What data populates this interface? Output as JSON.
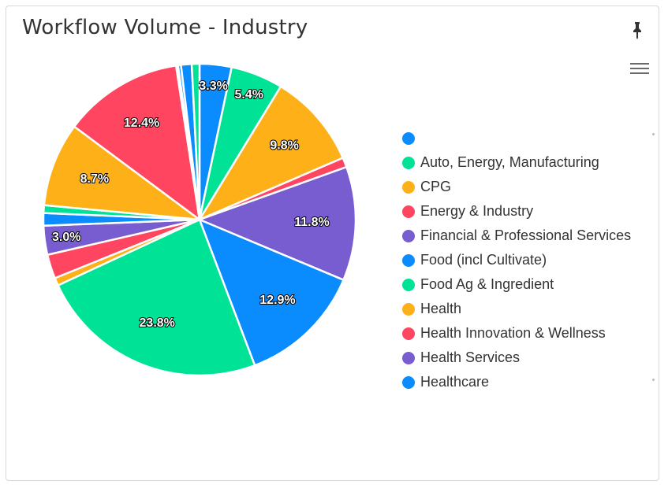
{
  "header": {
    "title": "Workflow Volume - Industry"
  },
  "colors": {
    "blue": "#0a8cff",
    "green": "#00e396",
    "orange": "#feb019",
    "red": "#ff4560",
    "purple": "#775dd0",
    "background": "#ffffff",
    "legend_text": "#333333"
  },
  "legend": {
    "items": [
      {
        "label": "",
        "color": "#0a8cff"
      },
      {
        "label": "Auto, Energy, Manufacturing",
        "color": "#00e396"
      },
      {
        "label": "CPG",
        "color": "#feb019"
      },
      {
        "label": "Energy & Industry",
        "color": "#ff4560"
      },
      {
        "label": "Financial & Professional Services",
        "color": "#775dd0"
      },
      {
        "label": "Food (incl Cultivate)",
        "color": "#0a8cff"
      },
      {
        "label": "Food Ag & Ingredient",
        "color": "#00e396"
      },
      {
        "label": "Health",
        "color": "#feb019"
      },
      {
        "label": "Health Innovation & Wellness",
        "color": "#ff4560"
      },
      {
        "label": "Health Services",
        "color": "#775dd0"
      },
      {
        "label": "Healthcare",
        "color": "#0a8cff"
      }
    ]
  },
  "chart_data": {
    "type": "pie",
    "title": "Workflow Volume - Industry",
    "slices": [
      {
        "value": 3.3,
        "label": "3.3%",
        "color": "#0a8cff"
      },
      {
        "value": 5.4,
        "label": "5.4%",
        "color": "#00e396"
      },
      {
        "value": 9.8,
        "label": "9.8%",
        "color": "#feb019"
      },
      {
        "value": 1.0,
        "label": "",
        "color": "#ff4560"
      },
      {
        "value": 11.8,
        "label": "11.8%",
        "color": "#775dd0"
      },
      {
        "value": 12.9,
        "label": "12.9%",
        "color": "#0a8cff"
      },
      {
        "value": 23.8,
        "label": "23.8%",
        "color": "#00e396"
      },
      {
        "value": 0.8,
        "label": "",
        "color": "#feb019"
      },
      {
        "value": 2.5,
        "label": "",
        "color": "#ff4560"
      },
      {
        "value": 3.0,
        "label": "3.0%",
        "color": "#775dd0"
      },
      {
        "value": 1.3,
        "label": "",
        "color": "#0a8cff"
      },
      {
        "value": 0.8,
        "label": "",
        "color": "#00e396"
      },
      {
        "value": 8.7,
        "label": "8.7%",
        "color": "#feb019"
      },
      {
        "value": 12.4,
        "label": "12.4%",
        "color": "#ff4560"
      },
      {
        "value": 0.2,
        "label": "",
        "color": "#775dd0"
      },
      {
        "value": 0.3,
        "label": "",
        "color": "#0a8cff"
      },
      {
        "value": 1.1,
        "label": "",
        "color": "#0a8cff"
      },
      {
        "value": 0.8,
        "label": "",
        "color": "#00e396"
      }
    ],
    "legend_position": "right"
  }
}
